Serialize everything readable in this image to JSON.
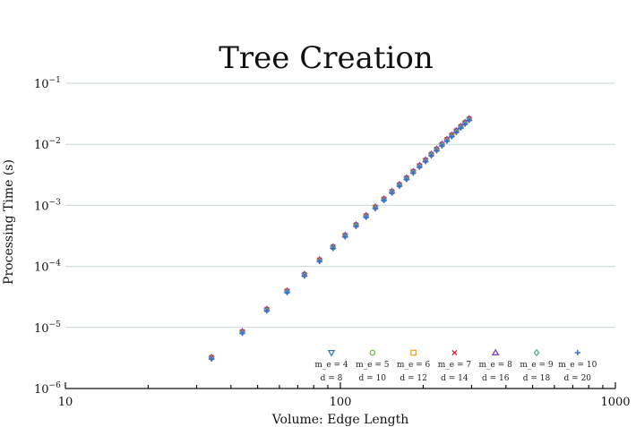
{
  "chart_data": {
    "type": "scatter",
    "title": "Tree Creation",
    "xlabel": "Volume: Edge Length",
    "ylabel": "Processing Time (s)",
    "x_scale": "log",
    "y_scale": "log",
    "xlim": [
      10,
      1000
    ],
    "ylim": [
      1e-06,
      0.1
    ],
    "x_tick_labels": [
      "10",
      "100",
      "1000"
    ],
    "y_tick_labels": [
      {
        "base": "10",
        "exp": "−6"
      },
      {
        "base": "10",
        "exp": "−5"
      },
      {
        "base": "10",
        "exp": "−4"
      },
      {
        "base": "10",
        "exp": "−3"
      },
      {
        "base": "10",
        "exp": "−2"
      },
      {
        "base": "10",
        "exp": "−1"
      }
    ],
    "grid": "horizontal",
    "legend_position": "bottom-right",
    "x": [
      34,
      44,
      54,
      64,
      74,
      84,
      94,
      104,
      114,
      124,
      134,
      144,
      154,
      164,
      174,
      184,
      194,
      204,
      214,
      224,
      234,
      244,
      254,
      264,
      274,
      284,
      294
    ],
    "y": [
      3.1e-06,
      8.2e-06,
      1.9e-05,
      3.8e-05,
      7.1e-05,
      0.000123,
      0.0002,
      0.00031,
      0.00046,
      0.00065,
      0.0009,
      0.00122,
      0.00162,
      0.0021,
      0.0027,
      0.00345,
      0.0043,
      0.0053,
      0.0066,
      0.008,
      0.0096,
      0.0115,
      0.0136,
      0.016,
      0.0188,
      0.0218,
      0.0252
    ],
    "series": [
      {
        "name_lines": [
          "m_e = 4",
          "d = 8"
        ],
        "marker": "triangle-down",
        "color": "#2f7fc1",
        "y_factor": 1.0
      },
      {
        "name_lines": [
          "m_e = 5",
          "d = 10"
        ],
        "marker": "circle",
        "color": "#6cc04a",
        "y_factor": 1.02
      },
      {
        "name_lines": [
          "m_e = 6",
          "d = 12"
        ],
        "marker": "square",
        "color": "#f0a030",
        "y_factor": 1.04
      },
      {
        "name_lines": [
          "m_e = 7",
          "d = 14"
        ],
        "marker": "x",
        "color": "#d62728",
        "y_factor": 1.05
      },
      {
        "name_lines": [
          "m_e = 8",
          "d = 16"
        ],
        "marker": "triangle-up",
        "color": "#7b3fc4",
        "y_factor": 1.06
      },
      {
        "name_lines": [
          "m_e = 9",
          "d = 18"
        ],
        "marker": "diamond",
        "color": "#5aa897",
        "y_factor": 1.0
      },
      {
        "name_lines": [
          "m_e = 10",
          "d = 20"
        ],
        "marker": "plus",
        "color": "#2f6fd6",
        "y_factor": 0.97
      }
    ]
  }
}
